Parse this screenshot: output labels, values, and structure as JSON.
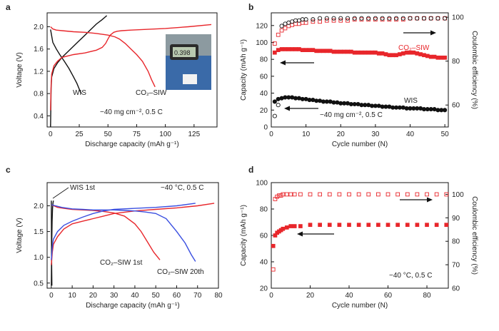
{
  "colors": {
    "red": "#e8262b",
    "black": "#111111",
    "blue": "#3a4fe0",
    "hollow_red": "#e8262b",
    "hollow_black": "#333333"
  },
  "chart_data": [
    {
      "id": "a",
      "type": "line",
      "panel_label": "a",
      "xlabel": "Discharge capacity (mAh g⁻¹)",
      "ylabel": "Voltage (V)",
      "xlim": [
        -3,
        145
      ],
      "ylim": [
        0.2,
        2.25
      ],
      "xticks": [
        0,
        25,
        50,
        75,
        100,
        125
      ],
      "yticks": [
        0.4,
        0.8,
        1.2,
        1.6,
        2.0
      ],
      "annotation": "−40 mg cm⁻², 0.5 C",
      "inset_label": "photo-inset",
      "series": [
        {
          "name": "WIS charge",
          "label": "WIS",
          "color": "black",
          "x": [
            0,
            0.5,
            1,
            3,
            6,
            10,
            15,
            20,
            25,
            30,
            35,
            40,
            45,
            49
          ],
          "y": [
            0.2,
            0.9,
            1.1,
            1.25,
            1.35,
            1.45,
            1.55,
            1.65,
            1.75,
            1.85,
            1.95,
            2.05,
            2.13,
            2.2
          ]
        },
        {
          "name": "WIS discharge",
          "label": "WIS",
          "color": "black",
          "x": [
            0,
            2,
            5,
            8,
            12,
            16,
            20,
            23,
            25,
            26,
            27
          ],
          "y": [
            1.95,
            1.72,
            1.6,
            1.5,
            1.38,
            1.25,
            1.1,
            0.98,
            0.88,
            0.83,
            0.8
          ]
        },
        {
          "name": "CO2-SIW charge",
          "label": "CO₂–SIW",
          "color": "red",
          "x": [
            0,
            0.5,
            1,
            3,
            6,
            10,
            20,
            30,
            40,
            45,
            48,
            50,
            52,
            55,
            58,
            62,
            70,
            80,
            100,
            120,
            140
          ],
          "y": [
            0.5,
            0.95,
            1.15,
            1.3,
            1.38,
            1.45,
            1.5,
            1.53,
            1.58,
            1.63,
            1.7,
            1.78,
            1.85,
            1.9,
            1.92,
            1.93,
            1.94,
            1.95,
            1.97,
            2.0,
            2.04
          ]
        },
        {
          "name": "CO2-SIW discharge",
          "label": "CO₂–SIW",
          "color": "red",
          "x": [
            0,
            2,
            5,
            10,
            20,
            30,
            40,
            50,
            56,
            60,
            65,
            70,
            75,
            80,
            85,
            88,
            91
          ],
          "y": [
            2.0,
            1.96,
            1.94,
            1.93,
            1.91,
            1.9,
            1.88,
            1.85,
            1.82,
            1.78,
            1.7,
            1.6,
            1.5,
            1.38,
            1.2,
            1.05,
            0.92
          ]
        }
      ],
      "labels": [
        "WIS",
        "CO₂–SIW"
      ]
    },
    {
      "id": "b",
      "type": "scatter",
      "panel_label": "b",
      "xlabel": "Cycle number (N)",
      "ylabel": "Capacity (mAh g⁻¹)",
      "ylabel_right": "Coulombic efficiency (%)",
      "xlim": [
        0,
        51
      ],
      "ylim": [
        0,
        135
      ],
      "ylim_right": [
        50,
        102
      ],
      "xticks": [
        0,
        10,
        20,
        30,
        40,
        50
      ],
      "yticks": [
        0,
        20,
        40,
        60,
        80,
        100,
        120
      ],
      "yticks_right": [
        60,
        80,
        100
      ],
      "annotation": "−40 mg cm⁻², 0.5 C",
      "labels": [
        "CO₂–SIW",
        "WIS"
      ],
      "series": [
        {
          "name": "CO2-SIW capacity",
          "axis": "left",
          "color": "red",
          "fill": true,
          "x": [
            1,
            2,
            3,
            4,
            5,
            6,
            7,
            8,
            9,
            10,
            11,
            12,
            13,
            14,
            15,
            16,
            17,
            18,
            19,
            20,
            21,
            22,
            23,
            24,
            25,
            26,
            27,
            28,
            29,
            30,
            31,
            32,
            33,
            34,
            35,
            36,
            37,
            38,
            39,
            40,
            41,
            42,
            43,
            44,
            45,
            46,
            47,
            48,
            49,
            50
          ],
          "y": [
            88,
            91,
            92,
            92,
            92,
            92,
            92,
            92,
            91,
            91,
            91,
            91,
            90,
            90,
            90,
            90,
            90,
            89,
            89,
            89,
            89,
            89,
            89,
            88,
            88,
            88,
            88,
            88,
            88,
            88,
            87,
            87,
            86,
            85,
            85,
            85,
            86,
            87,
            88,
            88,
            88,
            87,
            86,
            85,
            84,
            83,
            83,
            82,
            82,
            82
          ]
        },
        {
          "name": "CO2-SIW CE",
          "axis": "right",
          "color": "red",
          "fill": false,
          "x": [
            1,
            2,
            3,
            4,
            5,
            6,
            7,
            8,
            9,
            10,
            12,
            14,
            16,
            18,
            20,
            22,
            24,
            26,
            28,
            30,
            32,
            34,
            36,
            38,
            40,
            42,
            44,
            46,
            48,
            50
          ],
          "y": [
            88,
            92,
            94,
            95,
            96,
            96.5,
            97,
            97,
            97.5,
            97.5,
            98,
            98,
            98.5,
            98.5,
            98.5,
            98.5,
            99,
            99,
            99,
            99,
            99,
            99,
            99,
            99,
            99.5,
            99.5,
            99.5,
            99.5,
            99.5,
            99.5
          ]
        },
        {
          "name": "WIS capacity",
          "axis": "left",
          "color": "black",
          "fill": true,
          "x": [
            1,
            2,
            3,
            4,
            5,
            6,
            7,
            8,
            9,
            10,
            11,
            12,
            13,
            14,
            15,
            16,
            17,
            18,
            19,
            20,
            21,
            22,
            23,
            24,
            25,
            26,
            27,
            28,
            29,
            30,
            31,
            32,
            33,
            34,
            35,
            36,
            37,
            38,
            39,
            40,
            41,
            42,
            43,
            44,
            45,
            46,
            47,
            48,
            49,
            50
          ],
          "y": [
            30,
            33,
            34,
            35,
            35,
            35,
            34,
            34,
            33,
            33,
            32,
            32,
            31,
            31,
            30,
            30,
            30,
            29,
            29,
            28,
            28,
            28,
            27,
            27,
            27,
            26,
            26,
            26,
            25,
            25,
            25,
            24,
            24,
            24,
            23,
            23,
            23,
            23,
            22,
            22,
            22,
            22,
            22,
            21,
            21,
            21,
            21,
            20,
            20,
            20
          ]
        },
        {
          "name": "WIS CE",
          "axis": "right",
          "color": "black",
          "fill": false,
          "x": [
            1,
            2,
            3,
            4,
            5,
            6,
            7,
            8,
            9,
            10,
            12,
            14,
            16,
            18,
            20,
            22,
            24,
            26,
            28,
            30,
            32,
            34,
            36,
            38,
            40,
            42,
            44,
            46,
            48,
            50
          ],
          "y": [
            55,
            60,
            96,
            97,
            97.5,
            98,
            98.5,
            98.5,
            99,
            99,
            99,
            99.5,
            99.5,
            99.5,
            99.5,
            99.5,
            99.5,
            99.5,
            99.5,
            99.5,
            99.5,
            99.5,
            99.5,
            99.5,
            99.5,
            99.5,
            99.5,
            99.5,
            99.5,
            99.5
          ]
        }
      ]
    },
    {
      "id": "c",
      "type": "line",
      "panel_label": "c",
      "xlabel": "Discharge capacity (mAh g⁻¹)",
      "ylabel": "Voltage (V)",
      "xlim": [
        -2,
        80
      ],
      "ylim": [
        0.4,
        2.45
      ],
      "xticks": [
        0,
        10,
        20,
        30,
        40,
        50,
        60,
        70,
        80
      ],
      "yticks": [
        0.5,
        1.0,
        1.5,
        2.0
      ],
      "annotation": "−40 °C, 0.5 C",
      "labels": [
        "WIS 1st",
        "CO₂–SIW 1st",
        "CO₂–SIW 20th"
      ],
      "series": [
        {
          "name": "WIS 1st charge",
          "color": "black",
          "x": [
            0,
            0.2,
            0.4,
            0.6,
            0.8,
            1.0
          ],
          "y": [
            0.45,
            1.2,
            1.7,
            1.95,
            2.05,
            2.1
          ]
        },
        {
          "name": "WIS 1st discharge",
          "color": "black",
          "x": [
            0,
            0.1,
            0.2,
            0.3
          ],
          "y": [
            2.1,
            1.4,
            0.8,
            0.45
          ]
        },
        {
          "name": "CO2-SIW 1st charge",
          "color": "red",
          "x": [
            0,
            0.5,
            1,
            3,
            6,
            10,
            15,
            20,
            25,
            30,
            40,
            50,
            60,
            70,
            78
          ],
          "y": [
            0.85,
            1.1,
            1.25,
            1.4,
            1.55,
            1.65,
            1.7,
            1.75,
            1.8,
            1.85,
            1.9,
            1.93,
            1.96,
            2.0,
            2.05
          ]
        },
        {
          "name": "CO2-SIW 1st discharge",
          "color": "red",
          "x": [
            0,
            3,
            6,
            10,
            15,
            20,
            25,
            30,
            35,
            40,
            43,
            46,
            49,
            52
          ],
          "y": [
            2.02,
            1.97,
            1.95,
            1.93,
            1.92,
            1.91,
            1.89,
            1.86,
            1.8,
            1.65,
            1.5,
            1.3,
            1.1,
            0.95
          ]
        },
        {
          "name": "CO2-SIW 20th charge",
          "color": "blue",
          "x": [
            0,
            0.5,
            1,
            3,
            6,
            10,
            15,
            20,
            25,
            30,
            40,
            50,
            60,
            69
          ],
          "y": [
            0.95,
            1.2,
            1.35,
            1.5,
            1.62,
            1.7,
            1.78,
            1.85,
            1.9,
            1.93,
            1.95,
            1.97,
            2.0,
            2.05
          ]
        },
        {
          "name": "CO2-SIW 20th discharge",
          "color": "blue",
          "x": [
            0,
            5,
            10,
            15,
            20,
            25,
            30,
            35,
            40,
            45,
            50,
            55,
            60,
            64,
            67,
            69
          ],
          "y": [
            2.02,
            1.97,
            1.94,
            1.93,
            1.92,
            1.92,
            1.92,
            1.91,
            1.9,
            1.88,
            1.85,
            1.75,
            1.5,
            1.28,
            1.05,
            0.92
          ]
        }
      ]
    },
    {
      "id": "d",
      "type": "scatter",
      "panel_label": "d",
      "xlabel": "Cycle number (N)",
      "ylabel": "Capacity (mAh g⁻¹)",
      "ylabel_right": "Coulombic efficiency (%)",
      "xlim": [
        0,
        91
      ],
      "ylim": [
        20,
        100
      ],
      "ylim_right": [
        60,
        105
      ],
      "xticks": [
        0,
        20,
        40,
        60,
        80
      ],
      "yticks": [
        20,
        40,
        60,
        80,
        100
      ],
      "yticks_right": [
        60,
        70,
        80,
        90,
        100
      ],
      "annotation": "−40 °C, 0.5 C",
      "series": [
        {
          "name": "CO2-SIW CE",
          "axis": "right",
          "color": "red",
          "fill": false,
          "x": [
            1,
            2,
            3,
            4,
            5,
            6,
            8,
            10,
            12,
            15,
            20,
            25,
            30,
            35,
            40,
            45,
            50,
            55,
            60,
            65,
            70,
            75,
            80,
            85,
            90
          ],
          "y": [
            68,
            98,
            99,
            99.5,
            99.5,
            100,
            100,
            100,
            100,
            100,
            100,
            100,
            100,
            100,
            100,
            100,
            100,
            100,
            100,
            100,
            100,
            100,
            100,
            100,
            100
          ]
        },
        {
          "name": "CO2-SIW capacity",
          "axis": "left",
          "color": "red",
          "fill": true,
          "x": [
            1,
            2,
            3,
            4,
            5,
            6,
            8,
            10,
            12,
            15,
            20,
            25,
            30,
            35,
            40,
            45,
            50,
            55,
            60,
            65,
            70,
            75,
            80,
            85,
            90
          ],
          "y": [
            52,
            60,
            62,
            63,
            64,
            65,
            66,
            67,
            67,
            67,
            68,
            68,
            68,
            68,
            68,
            68,
            68,
            68,
            68,
            68,
            68,
            68,
            68,
            68,
            68
          ]
        }
      ]
    }
  ]
}
